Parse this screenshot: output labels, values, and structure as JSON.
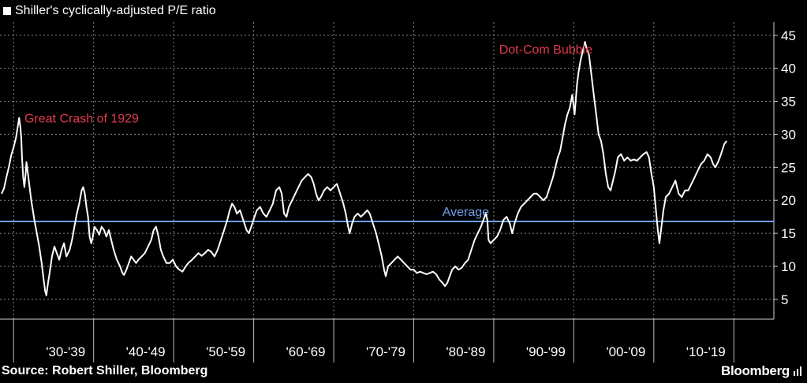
{
  "legend": {
    "series_label": "Shiller's cyclically-adjusted P/E ratio",
    "swatch_color": "#ffffff"
  },
  "source": "Source: Robert Shiller, Bloomberg",
  "brand": {
    "name": "Bloomberg",
    "icon": "bloomberg-terminal-icon"
  },
  "colors": {
    "background": "#000000",
    "line": "#ffffff",
    "average": "#6fa0e8",
    "annotation": "#e23b4e",
    "grid": "#8a8a8a"
  },
  "chart_data": {
    "type": "line",
    "title": "",
    "xlabel": "",
    "ylabel": "",
    "xlim": [
      1926.8,
      2023.5
    ],
    "ylim": [
      2,
      47
    ],
    "grid": true,
    "y_axis_position": "right",
    "yticks": [
      5,
      10,
      15,
      20,
      25,
      30,
      35,
      40,
      45
    ],
    "xtick_labels": [
      {
        "label": "'30-'39",
        "x": 1935
      },
      {
        "label": "'40-'49",
        "x": 1945
      },
      {
        "label": "'50-'59",
        "x": 1955
      },
      {
        "label": "'60-'69",
        "x": 1965
      },
      {
        "label": "'70-'79",
        "x": 1975
      },
      {
        "label": "'80-'89",
        "x": 1985
      },
      {
        "label": "'90-'99",
        "x": 1995
      },
      {
        "label": "'00-'09",
        "x": 2005
      },
      {
        "label": "'10-'19",
        "x": 2015
      }
    ],
    "decade_dividers": [
      1928.5,
      1938.5,
      1948.5,
      1958.5,
      1968.5,
      1978.5,
      1988.5,
      1998.5,
      2008.5,
      2018.5
    ],
    "average": {
      "label": "Average",
      "value": 16.8
    },
    "annotations": [
      {
        "text": "Great Crash of 1929",
        "x": 1937,
        "y": 31.8
      },
      {
        "text": "Dot-Com Bubble",
        "x": 1995,
        "y": 42.2
      }
    ],
    "series": [
      {
        "points": [
          [
            1927.0,
            21.0
          ],
          [
            1927.3,
            21.8
          ],
          [
            1927.6,
            23.5
          ],
          [
            1927.9,
            25.0
          ],
          [
            1928.2,
            26.8
          ],
          [
            1928.5,
            28.0
          ],
          [
            1928.8,
            29.5
          ],
          [
            1929.0,
            31.0
          ],
          [
            1929.2,
            32.5
          ],
          [
            1929.35,
            31.0
          ],
          [
            1929.45,
            29.5
          ],
          [
            1929.55,
            26.5
          ],
          [
            1929.7,
            23.5
          ],
          [
            1929.85,
            22.0
          ],
          [
            1930.0,
            24.0
          ],
          [
            1930.1,
            25.8
          ],
          [
            1930.3,
            24.0
          ],
          [
            1930.5,
            22.0
          ],
          [
            1930.7,
            20.0
          ],
          [
            1930.9,
            18.5
          ],
          [
            1931.1,
            17.0
          ],
          [
            1931.4,
            15.0
          ],
          [
            1931.7,
            13.0
          ],
          [
            1932.0,
            10.5
          ],
          [
            1932.25,
            8.0
          ],
          [
            1932.45,
            6.2
          ],
          [
            1932.6,
            5.6
          ],
          [
            1932.8,
            7.5
          ],
          [
            1933.0,
            9.0
          ],
          [
            1933.3,
            11.5
          ],
          [
            1933.6,
            13.0
          ],
          [
            1933.9,
            12.0
          ],
          [
            1934.2,
            11.0
          ],
          [
            1934.5,
            12.5
          ],
          [
            1934.8,
            13.5
          ],
          [
            1935.1,
            11.5
          ],
          [
            1935.5,
            12.5
          ],
          [
            1935.8,
            14.0
          ],
          [
            1936.1,
            16.0
          ],
          [
            1936.4,
            18.0
          ],
          [
            1936.7,
            19.5
          ],
          [
            1937.0,
            21.5
          ],
          [
            1937.2,
            22.0
          ],
          [
            1937.4,
            21.0
          ],
          [
            1937.6,
            19.0
          ],
          [
            1937.8,
            17.5
          ],
          [
            1938.0,
            14.5
          ],
          [
            1938.2,
            13.5
          ],
          [
            1938.4,
            14.5
          ],
          [
            1938.6,
            16.0
          ],
          [
            1938.9,
            15.5
          ],
          [
            1939.2,
            14.8
          ],
          [
            1939.5,
            16.0
          ],
          [
            1939.8,
            15.5
          ],
          [
            1940.1,
            14.5
          ],
          [
            1940.4,
            15.5
          ],
          [
            1940.7,
            14.0
          ],
          [
            1941.0,
            12.5
          ],
          [
            1941.4,
            11.0
          ],
          [
            1941.8,
            10.0
          ],
          [
            1942.1,
            9.0
          ],
          [
            1942.3,
            8.7
          ],
          [
            1942.6,
            9.5
          ],
          [
            1942.9,
            10.5
          ],
          [
            1943.2,
            11.5
          ],
          [
            1943.5,
            11.0
          ],
          [
            1943.8,
            10.5
          ],
          [
            1944.1,
            11.0
          ],
          [
            1944.5,
            11.5
          ],
          [
            1944.9,
            12.0
          ],
          [
            1945.3,
            13.0
          ],
          [
            1945.7,
            14.0
          ],
          [
            1946.0,
            15.5
          ],
          [
            1946.3,
            16.0
          ],
          [
            1946.6,
            14.5
          ],
          [
            1946.9,
            12.5
          ],
          [
            1947.2,
            11.5
          ],
          [
            1947.6,
            10.5
          ],
          [
            1948.0,
            10.5
          ],
          [
            1948.4,
            11.0
          ],
          [
            1948.8,
            10.0
          ],
          [
            1949.2,
            9.5
          ],
          [
            1949.6,
            9.2
          ],
          [
            1950.0,
            10.0
          ],
          [
            1950.4,
            10.6
          ],
          [
            1950.8,
            11.0
          ],
          [
            1951.2,
            11.5
          ],
          [
            1951.6,
            12.0
          ],
          [
            1952.0,
            11.6
          ],
          [
            1952.4,
            12.0
          ],
          [
            1952.8,
            12.5
          ],
          [
            1953.2,
            12.2
          ],
          [
            1953.6,
            11.5
          ],
          [
            1954.0,
            12.5
          ],
          [
            1954.4,
            14.0
          ],
          [
            1954.8,
            15.5
          ],
          [
            1955.2,
            17.0
          ],
          [
            1955.5,
            18.5
          ],
          [
            1955.8,
            19.5
          ],
          [
            1956.1,
            19.0
          ],
          [
            1956.4,
            18.0
          ],
          [
            1956.8,
            18.5
          ],
          [
            1957.2,
            17.0
          ],
          [
            1957.6,
            15.5
          ],
          [
            1957.9,
            15.0
          ],
          [
            1958.2,
            16.0
          ],
          [
            1958.6,
            17.5
          ],
          [
            1958.9,
            18.5
          ],
          [
            1959.3,
            19.0
          ],
          [
            1959.7,
            18.0
          ],
          [
            1960.1,
            17.5
          ],
          [
            1960.5,
            18.5
          ],
          [
            1960.9,
            19.5
          ],
          [
            1961.3,
            21.5
          ],
          [
            1961.7,
            22.0
          ],
          [
            1962.0,
            21.0
          ],
          [
            1962.3,
            18.0
          ],
          [
            1962.6,
            17.5
          ],
          [
            1962.9,
            19.0
          ],
          [
            1963.3,
            20.0
          ],
          [
            1963.7,
            21.0
          ],
          [
            1964.1,
            22.0
          ],
          [
            1964.5,
            23.0
          ],
          [
            1964.9,
            23.5
          ],
          [
            1965.3,
            24.0
          ],
          [
            1965.7,
            23.5
          ],
          [
            1966.0,
            22.5
          ],
          [
            1966.3,
            21.0
          ],
          [
            1966.6,
            20.0
          ],
          [
            1966.9,
            20.5
          ],
          [
            1967.3,
            21.5
          ],
          [
            1967.7,
            22.0
          ],
          [
            1968.1,
            21.5
          ],
          [
            1968.5,
            22.0
          ],
          [
            1968.9,
            22.5
          ],
          [
            1969.3,
            21.0
          ],
          [
            1969.7,
            19.5
          ],
          [
            1970.0,
            18.0
          ],
          [
            1970.3,
            16.0
          ],
          [
            1970.5,
            15.0
          ],
          [
            1970.8,
            16.5
          ],
          [
            1971.1,
            17.5
          ],
          [
            1971.5,
            18.0
          ],
          [
            1971.9,
            17.5
          ],
          [
            1972.3,
            18.0
          ],
          [
            1972.7,
            18.5
          ],
          [
            1973.0,
            18.0
          ],
          [
            1973.4,
            16.5
          ],
          [
            1973.8,
            15.0
          ],
          [
            1974.2,
            13.0
          ],
          [
            1974.5,
            11.5
          ],
          [
            1974.8,
            9.5
          ],
          [
            1975.0,
            8.5
          ],
          [
            1975.3,
            10.0
          ],
          [
            1975.7,
            10.5
          ],
          [
            1976.1,
            11.0
          ],
          [
            1976.5,
            11.5
          ],
          [
            1976.9,
            11.0
          ],
          [
            1977.3,
            10.5
          ],
          [
            1977.7,
            10.0
          ],
          [
            1978.1,
            9.5
          ],
          [
            1978.5,
            9.5
          ],
          [
            1978.9,
            9.0
          ],
          [
            1979.3,
            9.2
          ],
          [
            1979.7,
            9.0
          ],
          [
            1980.1,
            8.8
          ],
          [
            1980.5,
            9.0
          ],
          [
            1980.9,
            9.2
          ],
          [
            1981.3,
            8.8
          ],
          [
            1981.7,
            8.0
          ],
          [
            1982.1,
            7.5
          ],
          [
            1982.4,
            7.0
          ],
          [
            1982.7,
            7.5
          ],
          [
            1983.0,
            8.5
          ],
          [
            1983.3,
            9.5
          ],
          [
            1983.7,
            10.0
          ],
          [
            1984.1,
            9.5
          ],
          [
            1984.5,
            9.8
          ],
          [
            1984.9,
            10.5
          ],
          [
            1985.3,
            11.0
          ],
          [
            1985.7,
            12.5
          ],
          [
            1986.1,
            14.0
          ],
          [
            1986.5,
            15.0
          ],
          [
            1986.9,
            16.0
          ],
          [
            1987.2,
            17.0
          ],
          [
            1987.5,
            18.0
          ],
          [
            1987.7,
            17.0
          ],
          [
            1987.85,
            14.0
          ],
          [
            1988.1,
            13.5
          ],
          [
            1988.5,
            14.0
          ],
          [
            1988.9,
            14.5
          ],
          [
            1989.3,
            15.5
          ],
          [
            1989.7,
            17.0
          ],
          [
            1990.1,
            17.5
          ],
          [
            1990.5,
            16.5
          ],
          [
            1990.8,
            15.0
          ],
          [
            1991.1,
            16.5
          ],
          [
            1991.5,
            18.0
          ],
          [
            1991.9,
            19.0
          ],
          [
            1992.3,
            19.5
          ],
          [
            1992.7,
            20.0
          ],
          [
            1993.1,
            20.5
          ],
          [
            1993.5,
            21.0
          ],
          [
            1993.9,
            21.0
          ],
          [
            1994.3,
            20.5
          ],
          [
            1994.7,
            20.0
          ],
          [
            1995.1,
            20.5
          ],
          [
            1995.5,
            22.0
          ],
          [
            1995.9,
            23.5
          ],
          [
            1996.2,
            25.0
          ],
          [
            1996.5,
            26.5
          ],
          [
            1996.8,
            27.5
          ],
          [
            1997.1,
            29.5
          ],
          [
            1997.4,
            31.5
          ],
          [
            1997.7,
            33.0
          ],
          [
            1998.0,
            34.0
          ],
          [
            1998.3,
            36.0
          ],
          [
            1998.6,
            33.0
          ],
          [
            1998.9,
            37.5
          ],
          [
            1999.1,
            39.5
          ],
          [
            1999.4,
            41.5
          ],
          [
            1999.7,
            43.0
          ],
          [
            1999.9,
            44.0
          ],
          [
            2000.1,
            43.0
          ],
          [
            2000.4,
            42.0
          ],
          [
            2000.7,
            39.0
          ],
          [
            2001.0,
            36.0
          ],
          [
            2001.3,
            33.0
          ],
          [
            2001.6,
            30.0
          ],
          [
            2001.9,
            29.0
          ],
          [
            2002.2,
            27.0
          ],
          [
            2002.5,
            24.0
          ],
          [
            2002.8,
            22.0
          ],
          [
            2003.1,
            21.5
          ],
          [
            2003.4,
            23.0
          ],
          [
            2003.7,
            24.5
          ],
          [
            2004.0,
            26.5
          ],
          [
            2004.4,
            27.0
          ],
          [
            2004.8,
            26.0
          ],
          [
            2005.2,
            26.5
          ],
          [
            2005.6,
            26.0
          ],
          [
            2006.0,
            26.2
          ],
          [
            2006.4,
            26.0
          ],
          [
            2006.8,
            26.5
          ],
          [
            2007.2,
            27.0
          ],
          [
            2007.6,
            27.3
          ],
          [
            2007.9,
            26.5
          ],
          [
            2008.2,
            24.0
          ],
          [
            2008.5,
            22.0
          ],
          [
            2008.8,
            18.0
          ],
          [
            2009.0,
            15.5
          ],
          [
            2009.2,
            13.5
          ],
          [
            2009.4,
            15.5
          ],
          [
            2009.7,
            18.5
          ],
          [
            2010.0,
            20.5
          ],
          [
            2010.4,
            21.0
          ],
          [
            2010.8,
            22.0
          ],
          [
            2011.2,
            23.0
          ],
          [
            2011.6,
            21.0
          ],
          [
            2012.0,
            20.5
          ],
          [
            2012.4,
            21.5
          ],
          [
            2012.8,
            21.5
          ],
          [
            2013.2,
            22.5
          ],
          [
            2013.6,
            23.5
          ],
          [
            2014.0,
            24.5
          ],
          [
            2014.4,
            25.5
          ],
          [
            2014.8,
            26.0
          ],
          [
            2015.2,
            27.0
          ],
          [
            2015.6,
            26.5
          ],
          [
            2015.9,
            25.5
          ],
          [
            2016.2,
            25.0
          ],
          [
            2016.6,
            26.0
          ],
          [
            2016.9,
            27.0
          ],
          [
            2017.3,
            28.5
          ],
          [
            2017.6,
            29.0
          ]
        ]
      }
    ]
  }
}
